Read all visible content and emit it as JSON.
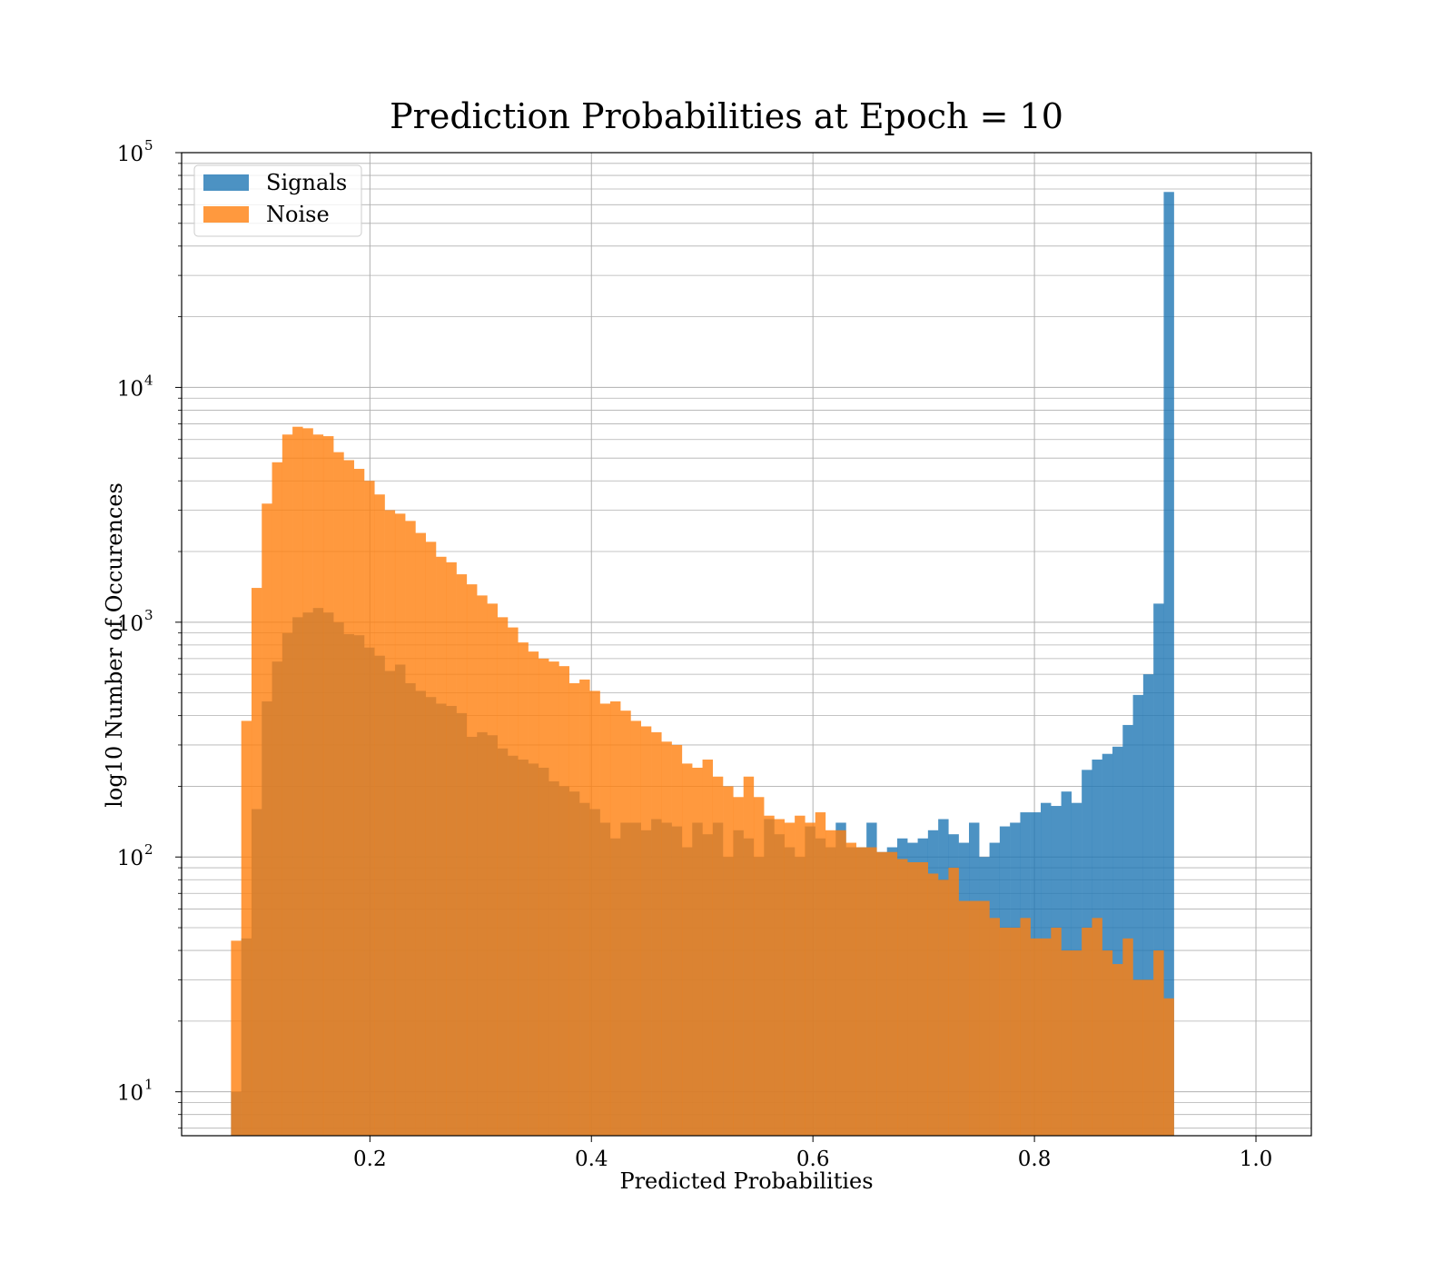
{
  "chart_data": {
    "type": "bar",
    "title": "Prediction Probabilities at Epoch = 10",
    "xlabel": "Predicted Probabilities",
    "ylabel": "log10 Number of Occurences",
    "xlim": [
      0.03,
      1.05
    ],
    "ylim": [
      6.5,
      100000
    ],
    "yscale": "log",
    "grid": true,
    "legend_position": "upper-left",
    "bin_start": 0.0746,
    "bin_width": 0.009254,
    "x_ticks": [
      {
        "value": 0.2,
        "label": "0.2"
      },
      {
        "value": 0.4,
        "label": "0.4"
      },
      {
        "value": 0.6,
        "label": "0.6"
      },
      {
        "value": 0.8,
        "label": "0.8"
      },
      {
        "value": 1.0,
        "label": "1.0"
      }
    ],
    "y_ticks": [
      {
        "value": 10,
        "base": "10",
        "exp": "1"
      },
      {
        "value": 100,
        "base": "10",
        "exp": "2"
      },
      {
        "value": 1000,
        "base": "10",
        "exp": "3"
      },
      {
        "value": 10000,
        "base": "10",
        "exp": "4"
      },
      {
        "value": 100000,
        "base": "10",
        "exp": "5"
      }
    ],
    "series": [
      {
        "name": "Signals",
        "color": "#1f77b4",
        "alpha": 0.8,
        "values": [
          10,
          45,
          160,
          460,
          680,
          900,
          1050,
          1100,
          1150,
          1100,
          1000,
          890,
          880,
          780,
          720,
          620,
          660,
          550,
          510,
          480,
          450,
          440,
          410,
          325,
          340,
          330,
          290,
          270,
          260,
          250,
          240,
          210,
          200,
          190,
          170,
          160,
          140,
          120,
          140,
          140,
          130,
          145,
          140,
          135,
          110,
          140,
          125,
          140,
          100,
          130,
          120,
          100,
          145,
          125,
          110,
          100,
          135,
          120,
          110,
          140,
          110,
          110,
          140,
          105,
          110,
          120,
          115,
          120,
          130,
          145,
          125,
          115,
          140,
          100,
          115,
          135,
          140,
          155,
          155,
          170,
          165,
          190,
          170,
          235,
          260,
          275,
          295,
          365,
          490,
          600,
          1200,
          68000
        ]
      },
      {
        "name": "Noise",
        "color": "#ff7f0e",
        "alpha": 0.8,
        "values": [
          44,
          380,
          1400,
          3200,
          4800,
          6300,
          6800,
          6700,
          6300,
          6200,
          5300,
          4900,
          4500,
          4000,
          3500,
          3000,
          2900,
          2700,
          2400,
          2200,
          1900,
          1800,
          1600,
          1450,
          1300,
          1200,
          1050,
          950,
          820,
          750,
          700,
          680,
          650,
          550,
          570,
          510,
          450,
          460,
          420,
          380,
          360,
          340,
          310,
          300,
          250,
          240,
          260,
          220,
          200,
          180,
          220,
          180,
          150,
          145,
          140,
          150,
          140,
          155,
          130,
          130,
          115,
          110,
          110,
          105,
          105,
          98,
          95,
          95,
          85,
          80,
          90,
          65,
          65,
          65,
          55,
          50,
          50,
          55,
          45,
          45,
          50,
          40,
          40,
          50,
          55,
          40,
          35,
          45,
          30,
          30,
          40,
          25
        ]
      }
    ]
  }
}
